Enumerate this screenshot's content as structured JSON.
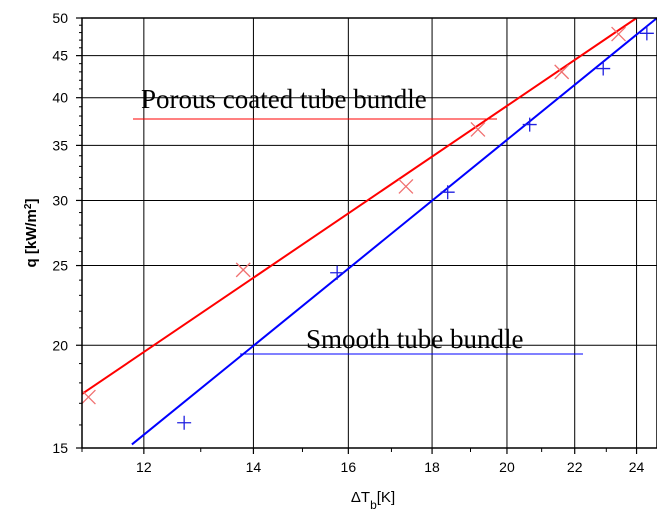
{
  "chart_data": {
    "type": "scatter",
    "title": "",
    "xlabel": "ΔT_b[K]",
    "xlabel_main": "ΔT",
    "xlabel_sub": "b",
    "xlabel_unit": "[K]",
    "ylabel": "q [kW/m²]",
    "ylabel_main": "q [kW/m",
    "ylabel_sup": "2",
    "ylabel_close": "]",
    "xlim": [
      11,
      24.7
    ],
    "ylim": [
      15,
      50
    ],
    "yscale": "log",
    "grid": true,
    "x_ticks": [
      12,
      14,
      16,
      18,
      20,
      22,
      24
    ],
    "y_ticks": [
      15,
      20,
      25,
      30,
      35,
      40,
      45,
      50
    ],
    "series": [
      {
        "name": "Porous coated tube bundle",
        "color": "#ff0000",
        "marker_color": "#f07070",
        "marker": "x",
        "points": [
          [
            11.1,
            17.3
          ],
          [
            13.8,
            24.7
          ],
          [
            17.35,
            31.2
          ],
          [
            19.2,
            36.6
          ],
          [
            21.6,
            43.0
          ],
          [
            23.4,
            47.8
          ]
        ],
        "fit": [
          [
            11.0,
            17.45
          ],
          [
            24.0,
            50.0
          ]
        ]
      },
      {
        "name": "Smooth tube bundle",
        "color": "#0000ff",
        "marker_color": "#2020e0",
        "marker": "+",
        "points": [
          [
            12.7,
            16.1
          ],
          [
            15.75,
            24.5
          ],
          [
            18.4,
            30.7
          ],
          [
            20.65,
            37.1
          ],
          [
            22.9,
            43.4
          ],
          [
            24.35,
            47.9
          ]
        ],
        "fit": [
          [
            11.8,
            15.15
          ],
          [
            24.7,
            50.0
          ]
        ]
      }
    ],
    "annotations": [
      {
        "text": "Porous coated tube bundle",
        "series": 0
      },
      {
        "text": "Smooth tube bundle",
        "series": 1
      }
    ]
  }
}
